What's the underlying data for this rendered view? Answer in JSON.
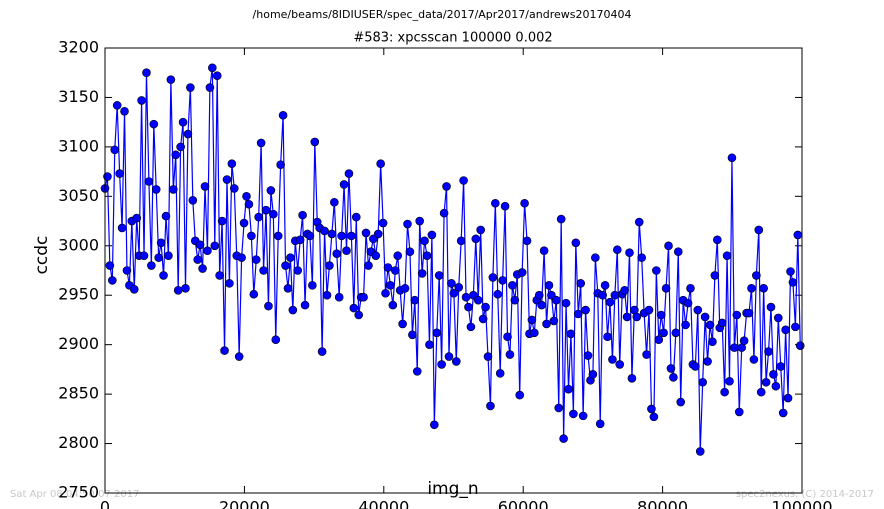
{
  "chart_data": {
    "type": "line",
    "suptitle": "/home/beams/8IDIUSER/spec_data/2017/Apr2017/andrews20170404",
    "title": "#583: xpcsscan 100000 0.002",
    "xlabel": "img_n",
    "ylabel": "ccdc",
    "footer_left": "Sat Apr 08 04:50:07 2017",
    "footer_right": "spec2nexus, (C) 2014-2017",
    "xlim": [
      0,
      100000
    ],
    "xticks": [
      0,
      20000,
      40000,
      60000,
      80000,
      100000
    ],
    "ylim": [
      2750,
      3200
    ],
    "yticks": [
      2750,
      2800,
      2850,
      2900,
      2950,
      3000,
      3050,
      3100,
      3150,
      3200
    ],
    "grid": false,
    "x": [
      0,
      350,
      700,
      1050,
      1400,
      1750,
      2100,
      2450,
      2800,
      3150,
      3500,
      3850,
      4200,
      4550,
      4900,
      5250,
      5600,
      5950,
      6300,
      6650,
      7000,
      7350,
      7700,
      8050,
      8400,
      8750,
      9100,
      9450,
      9800,
      10150,
      10500,
      10850,
      11200,
      11550,
      11900,
      12250,
      12600,
      12950,
      13300,
      13650,
      14000,
      14350,
      14700,
      15050,
      15400,
      15750,
      16100,
      16450,
      16800,
      17150,
      17500,
      17850,
      18200,
      18550,
      18900,
      19250,
      19600,
      19950,
      20300,
      20650,
      21000,
      21350,
      21700,
      22050,
      22400,
      22750,
      23100,
      23450,
      23800,
      24150,
      24500,
      24850,
      25200,
      25550,
      25900,
      26250,
      26600,
      26950,
      27300,
      27650,
      28000,
      28350,
      28700,
      29050,
      29400,
      29750,
      30100,
      30450,
      30800,
      31150,
      31500,
      31850,
      32200,
      32550,
      32900,
      33250,
      33600,
      33950,
      34300,
      34650,
      35000,
      35350,
      35700,
      36050,
      36400,
      36750,
      37100,
      37450,
      37800,
      38150,
      38500,
      38850,
      39200,
      39550,
      39900,
      40250,
      40600,
      40950,
      41300,
      41650,
      42000,
      42350,
      42700,
      43050,
      43400,
      43750,
      44100,
      44450,
      44800,
      45150,
      45500,
      45850,
      46200,
      46550,
      46900,
      47250,
      47600,
      47950,
      48300,
      48650,
      49000,
      49350,
      49700,
      50050,
      50400,
      50750,
      51100,
      51450,
      51800,
      52150,
      52500,
      52850,
      53200,
      53550,
      53900,
      54250,
      54600,
      54950,
      55300,
      55650,
      56000,
      56350,
      56700,
      57050,
      57400,
      57750,
      58100,
      58450,
      58800,
      59150,
      59500,
      59850,
      60200,
      60550,
      60900,
      61250,
      61600,
      61950,
      62300,
      62650,
      63000,
      63350,
      63700,
      64050,
      64400,
      64750,
      65100,
      65450,
      65800,
      66150,
      66500,
      66850,
      67200,
      67550,
      67900,
      68250,
      68600,
      68950,
      69300,
      69650,
      70000,
      70350,
      70700,
      71050,
      71400,
      71750,
      72100,
      72450,
      72800,
      73150,
      73500,
      73850,
      74200,
      74550,
      74900,
      75250,
      75600,
      75950,
      76300,
      76650,
      77000,
      77350,
      77700,
      78050,
      78400,
      78750,
      79100,
      79450,
      79800,
      80150,
      80500,
      80850,
      81200,
      81550,
      81900,
      82250,
      82600,
      82950,
      83300,
      83650,
      84000,
      84350,
      84700,
      85050,
      85400,
      85750,
      86100,
      86450,
      86800,
      87150,
      87500,
      87850,
      88200,
      88550,
      88900,
      89250,
      89600,
      89950,
      90300,
      90650,
      91000,
      91350,
      91700,
      92050,
      92400,
      92750,
      93100,
      93450,
      93800,
      94150,
      94500,
      94850,
      95200,
      95550,
      95900,
      96250,
      96600,
      96950,
      97300,
      97650,
      98000,
      98350,
      98700,
      99050,
      99400,
      99750
    ],
    "series": [
      {
        "name": "ccdc",
        "color": "#0000ff",
        "values": [
          3058,
          3070,
          2980,
          2965,
          3097,
          3142,
          3073,
          3018,
          3136,
          2975,
          2960,
          3025,
          2956,
          3028,
          2990,
          3147,
          2990,
          3175,
          3065,
          2980,
          3123,
          3057,
          2988,
          3003,
          2970,
          3030,
          2990,
          3168,
          3057,
          3092,
          2955,
          3100,
          3125,
          2957,
          3113,
          3160,
          3046,
          3005,
          2986,
          3001,
          2977,
          3060,
          2995,
          3160,
          3180,
          3000,
          3172,
          2970,
          3025,
          2894,
          3067,
          2962,
          3083,
          3058,
          2990,
          2888,
          2988,
          3023,
          3050,
          3042,
          3010,
          2951,
          2986,
          3029,
          3104,
          2975,
          3036,
          2939,
          3056,
          3032,
          2905,
          3010,
          3082,
          3132,
          2980,
          2957,
          2988,
          2935,
          3005,
          2975,
          3006,
          3031,
          2940,
          3012,
          3010,
          2960,
          3105,
          3024,
          3018,
          2893,
          3015,
          2950,
          2980,
          3012,
          3044,
          2992,
          2948,
          3010,
          3062,
          2995,
          3073,
          3010,
          2937,
          3029,
          2930,
          2948,
          2948,
          3013,
          2980,
          2994,
          3007,
          2990,
          3012,
          3083,
          3023,
          2952,
          2978,
          2960,
          2940,
          2975,
          2990,
          2955,
          2921,
          2957,
          3022,
          2994,
          2910,
          2945,
          2873,
          3025,
          2972,
          3005,
          2990,
          2900,
          3011,
          2819,
          2912,
          2970,
          2880,
          3033,
          3060,
          2888,
          2962,
          2952,
          2883,
          2958,
          3005,
          3066,
          2948,
          2938,
          2918,
          2950,
          3007,
          2945,
          3016,
          2926,
          2938,
          2888,
          2838,
          2968,
          3043,
          2951,
          2871,
          2965,
          3040,
          2908,
          2890,
          2960,
          2945,
          2971,
          2849,
          2973,
          3043,
          3005,
          2911,
          2925,
          2912,
          2945,
          2950,
          2940,
          2995,
          2921,
          2960,
          2950,
          2924,
          2945,
          2836,
          3027,
          2805,
          2942,
          2855,
          2911,
          2830,
          3003,
          2931,
          2962,
          2828,
          2935,
          2889,
          2864,
          2870,
          2988,
          2952,
          2820,
          2950,
          2960,
          2908,
          2943,
          2885,
          2950,
          2996,
          2880,
          2951,
          2955,
          2928,
          2993,
          2866,
          2935,
          2928,
          3024,
          2988,
          2932,
          2890,
          2935,
          2835,
          2827,
          2975,
          2905,
          2930,
          2912,
          2957,
          3000,
          2876,
          2867,
          2912,
          2994,
          2842,
          2945,
          2920,
          2942,
          2957,
          2880,
          2878,
          2935,
          2792,
          2862,
          2928,
          2883,
          2920,
          2903,
          2970,
          3006,
          2917,
          2922,
          2852,
          2990,
          2863,
          3089,
          2897,
          2930,
          2832,
          2897,
          2904,
          2932,
          2932,
          2957,
          2885,
          2970,
          3016,
          2852,
          2957,
          2862,
          2893,
          2938,
          2870,
          2858,
          2927,
          2878,
          2831,
          2915,
          2846,
          2974,
          2963,
          2918,
          3011,
          2899
        ]
      }
    ]
  }
}
